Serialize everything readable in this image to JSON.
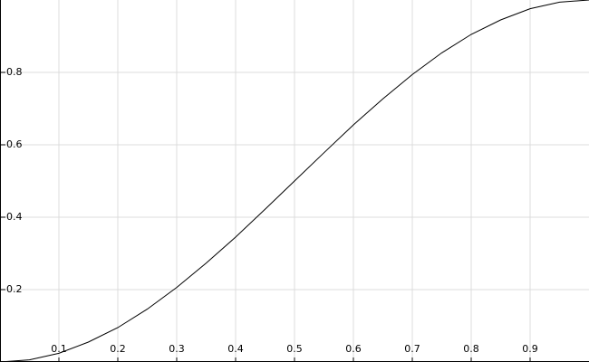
{
  "chart_data": {
    "type": "line",
    "x": [
      0,
      0.05,
      0.1,
      0.15,
      0.2,
      0.25,
      0.3,
      0.35,
      0.4,
      0.45,
      0.5,
      0.55,
      0.6,
      0.65,
      0.7,
      0.75,
      0.8,
      0.85,
      0.9,
      0.95,
      1
    ],
    "series": [
      {
        "color": "#000000",
        "values": [
          0,
          0.006,
          0.024,
          0.055,
          0.095,
          0.146,
          0.206,
          0.273,
          0.345,
          0.422,
          0.5,
          0.578,
          0.655,
          0.727,
          0.794,
          0.854,
          0.905,
          0.945,
          0.976,
          0.994,
          1
        ]
      }
    ],
    "xlim": [
      0,
      1
    ],
    "ylim": [
      0,
      1
    ],
    "xticks": [
      0.1,
      0.2,
      0.3,
      0.4,
      0.5,
      0.6,
      0.7,
      0.8,
      0.9
    ],
    "yticks": [
      0.2,
      0.4,
      0.6,
      0.8
    ],
    "grid": true
  }
}
